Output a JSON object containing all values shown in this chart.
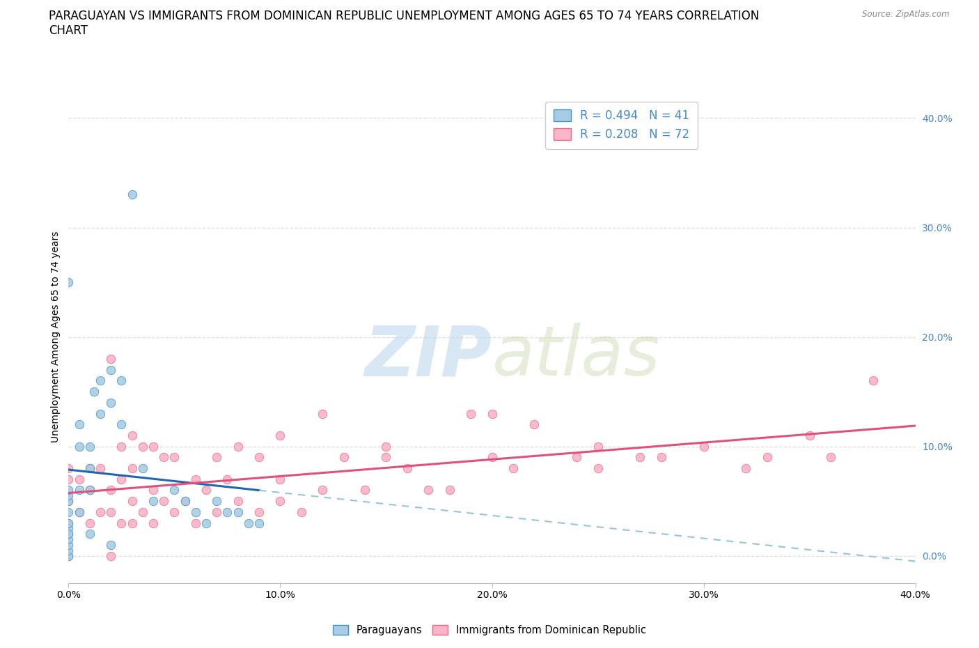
{
  "title_line1": "PARAGUAYAN VS IMMIGRANTS FROM DOMINICAN REPUBLIC UNEMPLOYMENT AMONG AGES 65 TO 74 YEARS CORRELATION",
  "title_line2": "CHART",
  "source_text": "Source: ZipAtlas.com",
  "ylabel": "Unemployment Among Ages 65 to 74 years",
  "xlim": [
    0.0,
    0.4
  ],
  "ylim": [
    -0.025,
    0.425
  ],
  "yticks": [
    0.0,
    0.1,
    0.2,
    0.3,
    0.4
  ],
  "xticks": [
    0.0,
    0.1,
    0.2,
    0.3,
    0.4
  ],
  "xlabel_labels": [
    "0.0%",
    "10.0%",
    "20.0%",
    "30.0%",
    "40.0%"
  ],
  "ylabel_labels": [
    "0.0%",
    "10.0%",
    "20.0%",
    "30.0%",
    "40.0%"
  ],
  "watermark_zip": "ZIP",
  "watermark_atlas": "atlas",
  "legend_label1": "Paraguayans",
  "legend_label2": "Immigrants from Dominican Republic",
  "R1": 0.494,
  "N1": 41,
  "R2": 0.208,
  "N2": 72,
  "color_blue_fill": "#a8cce4",
  "color_blue_edge": "#4393c3",
  "color_blue_line": "#2166ac",
  "color_blue_dash": "#92c5de",
  "color_pink_fill": "#fbb4c8",
  "color_pink_edge": "#e8688a",
  "color_pink_line": "#e0507a",
  "grid_color": "#dddddd",
  "background_color": "#ffffff",
  "right_tick_color": "#4488cc",
  "paraguayan_x": [
    0.0,
    0.0,
    0.0,
    0.0,
    0.0,
    0.0,
    0.0,
    0.0,
    0.0,
    0.0,
    0.0,
    0.0,
    0.005,
    0.005,
    0.005,
    0.005,
    0.01,
    0.01,
    0.01,
    0.012,
    0.015,
    0.02,
    0.02,
    0.025,
    0.025,
    0.03,
    0.035,
    0.04,
    0.05,
    0.055,
    0.06,
    0.065,
    0.07,
    0.075,
    0.08,
    0.085,
    0.09,
    0.01,
    0.015,
    0.02,
    0.0
  ],
  "paraguayan_y": [
    0.0,
    0.005,
    0.01,
    0.015,
    0.02,
    0.025,
    0.03,
    0.04,
    0.05,
    0.055,
    0.06,
    0.25,
    0.04,
    0.06,
    0.1,
    0.12,
    0.06,
    0.08,
    0.1,
    0.15,
    0.16,
    0.14,
    0.17,
    0.12,
    0.16,
    0.33,
    0.08,
    0.05,
    0.06,
    0.05,
    0.04,
    0.03,
    0.05,
    0.04,
    0.04,
    0.03,
    0.03,
    0.02,
    0.13,
    0.01,
    0.02
  ],
  "dominican_x": [
    0.0,
    0.0,
    0.0,
    0.0,
    0.0,
    0.005,
    0.005,
    0.01,
    0.01,
    0.01,
    0.015,
    0.015,
    0.02,
    0.02,
    0.02,
    0.02,
    0.025,
    0.025,
    0.025,
    0.03,
    0.03,
    0.03,
    0.03,
    0.035,
    0.035,
    0.04,
    0.04,
    0.04,
    0.045,
    0.045,
    0.05,
    0.05,
    0.055,
    0.06,
    0.06,
    0.065,
    0.07,
    0.07,
    0.075,
    0.08,
    0.08,
    0.09,
    0.09,
    0.1,
    0.1,
    0.11,
    0.12,
    0.12,
    0.13,
    0.14,
    0.15,
    0.16,
    0.17,
    0.18,
    0.19,
    0.2,
    0.21,
    0.22,
    0.24,
    0.25,
    0.27,
    0.28,
    0.3,
    0.32,
    0.33,
    0.35,
    0.36,
    0.38,
    0.2,
    0.25,
    0.1,
    0.15
  ],
  "dominican_y": [
    0.0,
    0.03,
    0.05,
    0.07,
    0.08,
    0.04,
    0.07,
    0.03,
    0.06,
    0.08,
    0.04,
    0.08,
    0.0,
    0.04,
    0.06,
    0.18,
    0.03,
    0.07,
    0.1,
    0.03,
    0.05,
    0.08,
    0.11,
    0.04,
    0.1,
    0.03,
    0.06,
    0.1,
    0.05,
    0.09,
    0.04,
    0.09,
    0.05,
    0.03,
    0.07,
    0.06,
    0.04,
    0.09,
    0.07,
    0.05,
    0.1,
    0.04,
    0.09,
    0.05,
    0.11,
    0.04,
    0.06,
    0.13,
    0.09,
    0.06,
    0.1,
    0.08,
    0.06,
    0.06,
    0.13,
    0.09,
    0.08,
    0.12,
    0.09,
    0.1,
    0.09,
    0.09,
    0.1,
    0.08,
    0.09,
    0.11,
    0.09,
    0.16,
    0.13,
    0.08,
    0.07,
    0.09
  ]
}
